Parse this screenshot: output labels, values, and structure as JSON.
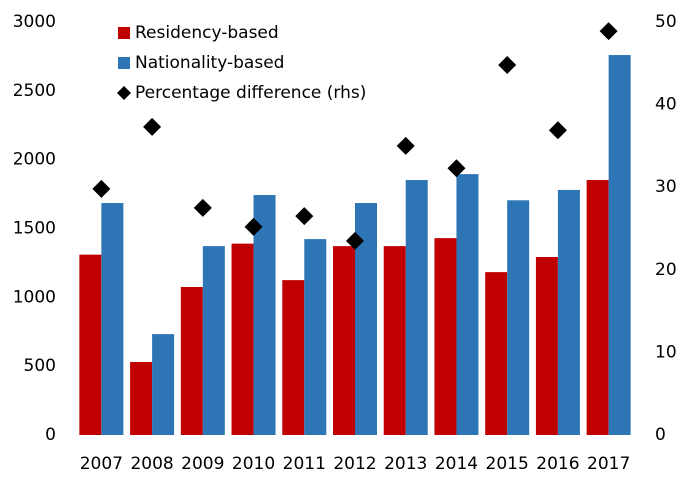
{
  "chart_data": {
    "type": "bar",
    "categories": [
      "2007",
      "2008",
      "2009",
      "2010",
      "2011",
      "2012",
      "2013",
      "2014",
      "2015",
      "2016",
      "2017"
    ],
    "series": [
      {
        "name": "Residency-based",
        "color": "#c00000",
        "values": [
          1310,
          530,
          1075,
          1390,
          1125,
          1372,
          1372,
          1430,
          1183,
          1293,
          1852
        ]
      },
      {
        "name": "Nationality-based",
        "color": "#2e75b6",
        "values": [
          1685,
          733,
          1372,
          1743,
          1423,
          1685,
          1852,
          1895,
          1705,
          1780,
          2760
        ]
      },
      {
        "name": "Percentage difference (rhs)",
        "color": "#000000",
        "type": "scatter",
        "axis": "y2",
        "values": [
          29.8,
          37.3,
          27.5,
          25.2,
          26.5,
          23.5,
          35,
          32.3,
          44.8,
          36.9,
          48.9
        ]
      }
    ],
    "ylim": [
      0,
      3000
    ],
    "yticks": [
      0,
      500,
      1000,
      1500,
      2000,
      2500,
      3000
    ],
    "y2lim": [
      0,
      50
    ],
    "y2ticks": [
      0,
      10,
      20,
      30,
      40,
      50
    ],
    "grid": false,
    "legend": "upper left"
  }
}
